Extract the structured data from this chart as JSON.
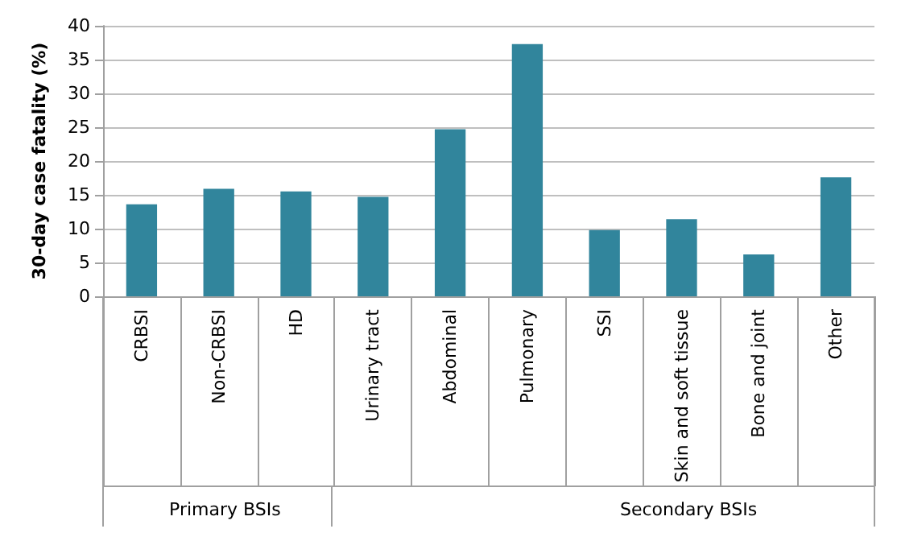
{
  "chart_data": {
    "type": "bar",
    "ylabel": "30-day case fatality (%)",
    "categories": [
      "CRBSI",
      "Non-CRBSI",
      "HD",
      "Urinary tract",
      "Abdominal",
      "Pulmonary",
      "SSI",
      "Skin and soft tissue",
      "Bone and joint",
      "Other"
    ],
    "values": [
      13.6,
      15.9,
      15.5,
      14.7,
      24.7,
      37.3,
      9.8,
      11.4,
      6.2,
      17.6
    ],
    "color": "#31859c",
    "ylim": [
      0,
      40
    ],
    "yticks": [
      0,
      5,
      10,
      15,
      20,
      25,
      30,
      35,
      40
    ],
    "grid": "y",
    "annotations": [
      "Primary BSIs",
      "Secondary BSIs"
    ]
  }
}
